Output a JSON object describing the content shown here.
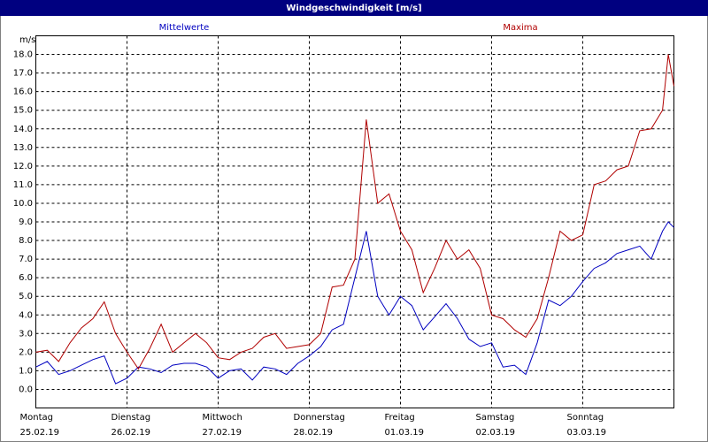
{
  "chart_data": {
    "type": "line",
    "title": "Windgeschwindigkeit [m/s]",
    "y_label": "m/s",
    "x": [
      0,
      3,
      6,
      9,
      12,
      15,
      18,
      21,
      24,
      27,
      30,
      33,
      36,
      39,
      42,
      45,
      48,
      51,
      54,
      57,
      60,
      63,
      66,
      69,
      72,
      75,
      78,
      81,
      84,
      87,
      90,
      93,
      96,
      99,
      102,
      105,
      108,
      111,
      114,
      117,
      120,
      123,
      126,
      129,
      132,
      135,
      138,
      141,
      144,
      147,
      150,
      153,
      156,
      159,
      162,
      165,
      166.5,
      168
    ],
    "xlim": [
      0,
      168
    ],
    "xticks": [
      {
        "value": 0,
        "label": [
          "Montag",
          "25.02.19"
        ]
      },
      {
        "value": 24,
        "label": [
          "Dienstag",
          "26.02.19"
        ]
      },
      {
        "value": 48,
        "label": [
          "Mittwoch",
          "27.02.19"
        ]
      },
      {
        "value": 72,
        "label": [
          "Donnerstag",
          "28.02.19"
        ]
      },
      {
        "value": 96,
        "label": [
          "Freitag",
          "01.03.19"
        ]
      },
      {
        "value": 120,
        "label": [
          "Samstag",
          "02.03.19"
        ]
      },
      {
        "value": 144,
        "label": [
          "Sonntag",
          "03.03.19"
        ]
      }
    ],
    "ylim": [
      -1,
      19
    ],
    "yticks": [
      {
        "value": 0,
        "label": "0.0"
      },
      {
        "value": 1,
        "label": "1.0"
      },
      {
        "value": 2,
        "label": "2.0"
      },
      {
        "value": 3,
        "label": "3.0"
      },
      {
        "value": 4,
        "label": "4.0"
      },
      {
        "value": 5,
        "label": "5.0"
      },
      {
        "value": 6,
        "label": "6.0"
      },
      {
        "value": 7,
        "label": "7.0"
      },
      {
        "value": 8,
        "label": "8.0"
      },
      {
        "value": 9,
        "label": "9.0"
      },
      {
        "value": 10,
        "label": "10.0"
      },
      {
        "value": 11,
        "label": "11.0"
      },
      {
        "value": 12,
        "label": "12.0"
      },
      {
        "value": 13,
        "label": "13.0"
      },
      {
        "value": 14,
        "label": "14.0"
      },
      {
        "value": 15,
        "label": "15.0"
      },
      {
        "value": 16,
        "label": "16.0"
      },
      {
        "value": 17,
        "label": "17.0"
      },
      {
        "value": 18,
        "label": "18.0"
      }
    ],
    "grid": true,
    "series": [
      {
        "name": "Mittelwerte",
        "color": "#0000c0",
        "values": [
          1.2,
          1.5,
          0.8,
          1.0,
          1.3,
          1.6,
          1.8,
          0.3,
          0.6,
          1.2,
          1.1,
          0.9,
          1.3,
          1.4,
          1.4,
          1.2,
          0.6,
          1.0,
          1.1,
          0.5,
          1.2,
          1.1,
          0.8,
          1.4,
          1.8,
          2.3,
          3.2,
          3.5,
          6.0,
          8.5,
          5.0,
          4.0,
          5.0,
          4.5,
          3.2,
          3.9,
          4.6,
          3.8,
          2.7,
          2.3,
          2.5,
          1.2,
          1.3,
          0.8,
          2.5,
          4.8,
          4.5,
          5.0,
          5.8,
          6.5,
          6.8,
          7.3,
          7.5,
          7.7,
          7.0,
          8.5,
          9.0,
          8.7
        ]
      },
      {
        "name": "Maxima",
        "color": "#b00000",
        "values": [
          2.0,
          2.1,
          1.5,
          2.5,
          3.3,
          3.8,
          4.7,
          3.0,
          2.0,
          1.1,
          2.2,
          3.5,
          2.0,
          2.5,
          3.0,
          2.5,
          1.7,
          1.6,
          2.0,
          2.2,
          2.8,
          3.0,
          2.2,
          2.3,
          2.4,
          3.0,
          5.5,
          5.6,
          7.0,
          14.5,
          10.0,
          10.5,
          8.5,
          7.5,
          5.2,
          6.5,
          8.0,
          7.0,
          7.5,
          6.5,
          4.0,
          3.8,
          3.2,
          2.8,
          3.8,
          6.0,
          8.5,
          8.0,
          8.3,
          11.0,
          11.2,
          11.8,
          12.0,
          13.9,
          14.0,
          15.0,
          18.0,
          16.3
        ]
      }
    ]
  }
}
